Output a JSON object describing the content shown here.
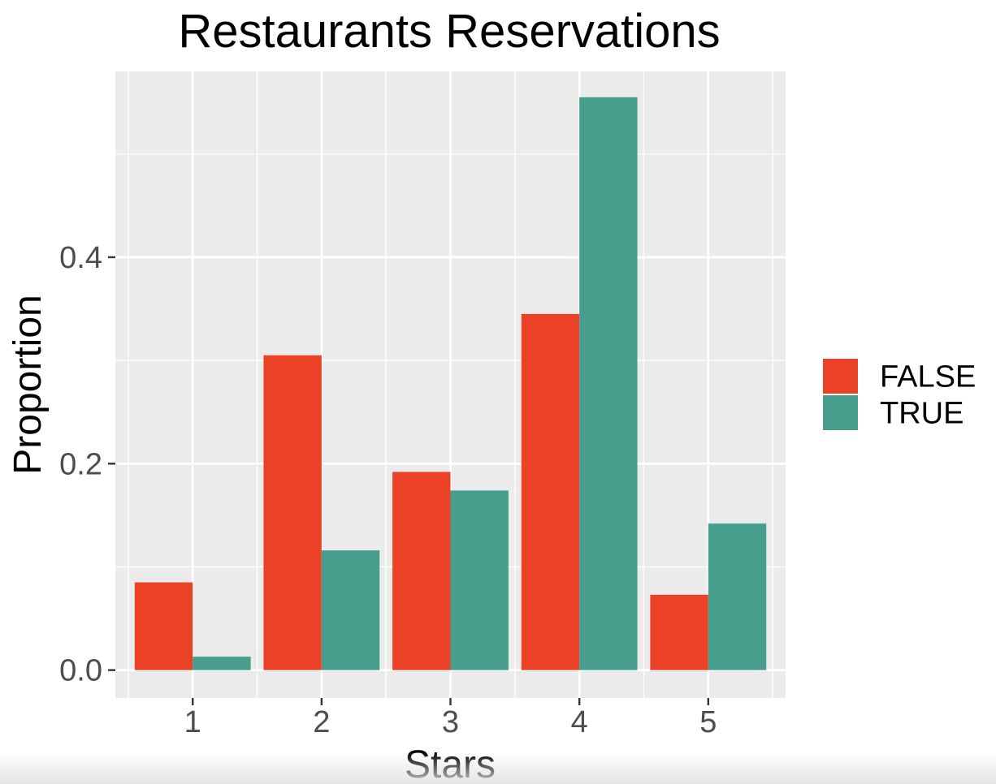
{
  "chart_data": {
    "type": "bar",
    "title": "Restaurants Reservations",
    "xlabel": "Stars",
    "ylabel": "Proportion",
    "categories": [
      "1",
      "2",
      "3",
      "4",
      "5"
    ],
    "series": [
      {
        "name": "FALSE",
        "color": "#EB4127",
        "values": [
          0.085,
          0.305,
          0.192,
          0.345,
          0.073
        ]
      },
      {
        "name": "TRUE",
        "color": "#479E8C",
        "values": [
          0.013,
          0.116,
          0.174,
          0.555,
          0.142
        ]
      }
    ],
    "yticks": [
      {
        "value": 0.0,
        "label": "0.0"
      },
      {
        "value": 0.2,
        "label": "0.2"
      },
      {
        "value": 0.4,
        "label": "0.4"
      }
    ],
    "ylim": [
      -0.027,
      0.58
    ],
    "grid": true,
    "legend_position": "right",
    "panel_color": "#EBEBEB",
    "grid_color": "#FFFFFF"
  }
}
